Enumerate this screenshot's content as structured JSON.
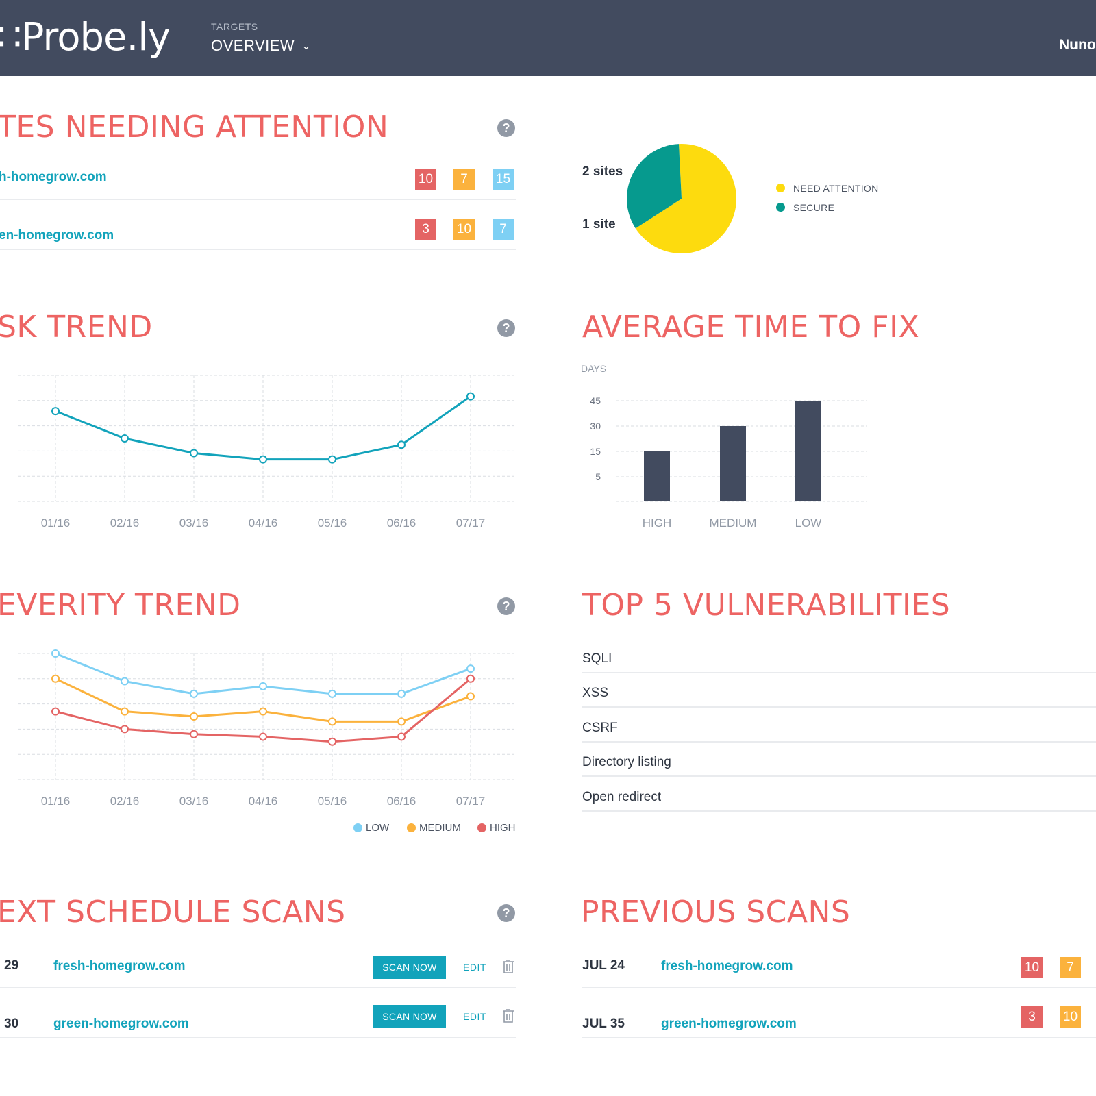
{
  "header": {
    "logo": "∷Probe.ly",
    "nav_small": "TARGETS",
    "nav_main": "OVERVIEW",
    "nav_chevron": "⌄",
    "user": "Nuno"
  },
  "attention": {
    "title": "TES NEEDING ATTENTION",
    "rows": [
      {
        "site": "h-homegrow.com",
        "high": "10",
        "medium": "7",
        "low": "15"
      },
      {
        "site": "en-homegrow.com",
        "high": "3",
        "medium": "10",
        "low": "7"
      }
    ]
  },
  "pie": {
    "label_top": "2 sites",
    "label_bottom": "1 site",
    "legend": [
      {
        "label": "NEED ATTENTION",
        "color": "#fddb0e"
      },
      {
        "label": "SECURE",
        "color": "#069a8e"
      }
    ]
  },
  "risk": {
    "title": "SK TREND"
  },
  "fix": {
    "title": "AVERAGE TIME TO FIX"
  },
  "severity": {
    "title": "EVERITY TREND",
    "legend": [
      {
        "label": "LOW",
        "color": "#7ed0f4"
      },
      {
        "label": "MEDIUM",
        "color": "#fbb23d"
      },
      {
        "label": "HIGH",
        "color": "#e46464"
      }
    ]
  },
  "top5": {
    "title": "TOP 5 VULNERABILITIES",
    "items": [
      "SQLI",
      "XSS",
      "CSRF",
      "Directory listing",
      "Open redirect"
    ]
  },
  "next": {
    "title": "EXT SCHEDULE SCANS",
    "scan_label": "SCAN NOW",
    "edit_label": "EDIT",
    "rows": [
      {
        "date": "29",
        "site": "fresh-homegrow.com"
      },
      {
        "date": "30",
        "site": "green-homegrow.com"
      }
    ]
  },
  "previous": {
    "title": "PREVIOUS SCANS",
    "rows": [
      {
        "date": "JUL  24",
        "site": "fresh-homegrow.com",
        "high": "10",
        "medium": "7"
      },
      {
        "date": "JUL  35",
        "site": "green-homegrow.com",
        "high": "3",
        "medium": "10"
      }
    ]
  },
  "chart_data": [
    {
      "type": "line",
      "x": [
        "01/16",
        "02/16",
        "03/16",
        "04/16",
        "05/16",
        "06/16",
        "07/17"
      ],
      "series": [
        {
          "values": [
            33,
            20,
            13,
            10,
            10,
            17,
            40
          ]
        }
      ],
      "ylim": [
        -10,
        50
      ],
      "grid": true
    },
    {
      "type": "bar",
      "ylabel": "DAYS",
      "categories": [
        "HIGH",
        "MEDIUM",
        "LOW"
      ],
      "values": [
        15,
        30,
        45
      ],
      "yticks": [
        "45",
        "30",
        "15",
        "5"
      ],
      "grid": true
    },
    {
      "type": "line",
      "x": [
        "01/16",
        "02/16",
        "03/16",
        "04/16",
        "05/16",
        "06/16",
        "07/17"
      ],
      "series": [
        {
          "name": "LOW",
          "color": "#7ed0f4",
          "values": [
            50,
            39,
            34,
            37,
            34,
            34,
            44
          ]
        },
        {
          "name": "MEDIUM",
          "color": "#fbb23d",
          "values": [
            40,
            27,
            25,
            27,
            23,
            23,
            33
          ]
        },
        {
          "name": "HIGH",
          "color": "#e46464",
          "values": [
            27,
            20,
            18,
            17,
            15,
            17,
            40
          ]
        }
      ],
      "ylim": [
        0,
        50
      ],
      "grid": true,
      "legend": "bottom-right"
    },
    {
      "type": "pie",
      "categories": [
        "NEED ATTENTION",
        "SECURE"
      ],
      "values": [
        2,
        1
      ],
      "colors": [
        "#fddb0e",
        "#069a8e"
      ]
    }
  ]
}
